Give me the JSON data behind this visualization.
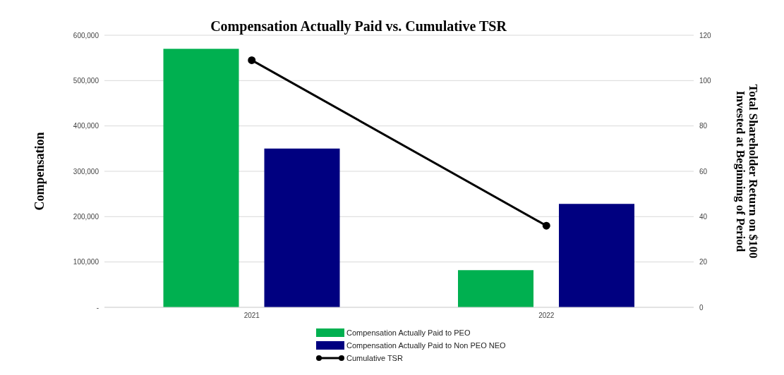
{
  "chart_data": {
    "type": "bar",
    "title": "Compensation Actually Paid vs. Cumulative TSR",
    "categories": [
      "2021",
      "2022"
    ],
    "ylabel": "Compensation",
    "y2label": "Total Shareholder Return on $100 Invested at Beginning of Period",
    "series": [
      {
        "name": "Compensation Actually Paid to PEO",
        "color": "#00b050",
        "values": [
          570000,
          82000
        ]
      },
      {
        "name": "Compensation Actually Paid to Non PEO NEO",
        "color": "#000080",
        "values": [
          350000,
          228000
        ]
      },
      {
        "name": "Cumulative TSR",
        "type": "line",
        "axis": "y2",
        "color": "#000000",
        "values": [
          109,
          36
        ]
      }
    ],
    "ylim": [
      0,
      600000
    ],
    "yticks": [
      {
        "value": 0,
        "label": "-"
      },
      {
        "value": 100000,
        "label": "100,000"
      },
      {
        "value": 200000,
        "label": "200,000"
      },
      {
        "value": 300000,
        "label": "300,000"
      },
      {
        "value": 400000,
        "label": "400,000"
      },
      {
        "value": 500000,
        "label": "500,000"
      },
      {
        "value": 600000,
        "label": "600,000"
      }
    ],
    "y2lim": [
      0,
      120
    ],
    "y2ticks": [
      0,
      20,
      40,
      60,
      80,
      100,
      120
    ],
    "grid": "y",
    "legend": "bottom",
    "marker": "circle"
  }
}
